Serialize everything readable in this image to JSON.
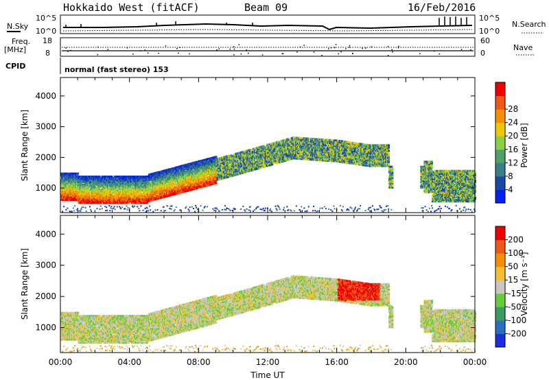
{
  "header": {
    "radar": "Hokkaido West (fitACF)",
    "beam": "Beam 09",
    "date": "16/Feb/2016"
  },
  "status_panels": {
    "nsky_label": "N.Sky",
    "nsky_ticks": [
      "10^5",
      "10^0"
    ],
    "nsearch_label": "N.Search",
    "nsearch_ticks": [
      "10^5",
      "10^0"
    ],
    "freq_label_1": "Freq.",
    "freq_label_2": "[MHz]",
    "freq_ticks": [
      "18",
      "8"
    ],
    "nave_label": "Nave",
    "nave_ticks": [
      "60",
      "0"
    ],
    "cpid_label": "CPID",
    "cpid_text": "normal (fast stereo) 153"
  },
  "chart_data": [
    {
      "type": "heatmap",
      "name": "power-panel",
      "ylabel": "Slant Range [km]",
      "xlabel": "",
      "ylim": [
        200,
        4600
      ],
      "y_ticks": [
        "1000",
        "2000",
        "3000",
        "4000"
      ],
      "colorbar_label": "Power [dB]",
      "colorbar_ticks": [
        "4",
        "8",
        "12",
        "16",
        "20",
        "24",
        "28"
      ],
      "colorbar_colors": [
        "#0022ee",
        "#1848a8",
        "#3a7c8c",
        "#52a068",
        "#8cd04a",
        "#f0c800",
        "#f49000",
        "#f05818",
        "#ee0000"
      ]
    },
    {
      "type": "heatmap",
      "name": "velocity-panel",
      "ylabel": "Slant Range [km]",
      "xlabel": "Time UT",
      "ylim": [
        200,
        4600
      ],
      "y_ticks": [
        "1000",
        "2000",
        "3000",
        "4000"
      ],
      "x_ticks": [
        "00:00",
        "04:00",
        "08:00",
        "12:00",
        "16:00",
        "20:00",
        "00:00"
      ],
      "colorbar_label": "Velocity [m s⁻¹]",
      "colorbar_ticks": [
        "200",
        "100",
        "50",
        "15",
        "-15",
        "-50",
        "-100",
        "-200"
      ],
      "colorbar_colors": [
        "#1a2ee0",
        "#2a6ec0",
        "#3c9a64",
        "#66cc3a",
        "#c8c8c0",
        "#f4c030",
        "#f49000",
        "#f05818",
        "#ee0000"
      ]
    }
  ]
}
